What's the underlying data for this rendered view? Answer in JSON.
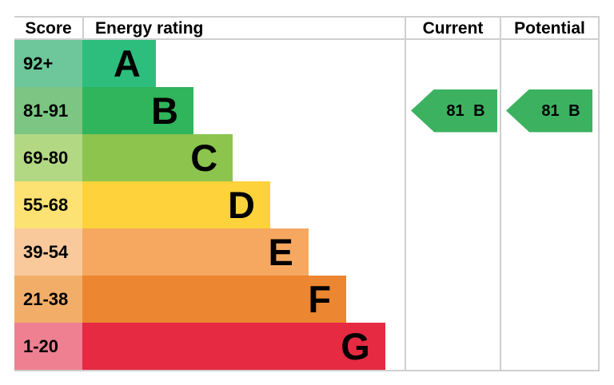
{
  "header": {
    "score": "Score",
    "energy_rating": "Energy rating",
    "current": "Current",
    "potential": "Potential"
  },
  "bands": [
    {
      "score": "92+",
      "letter": "A",
      "bar_color": "#2dbe7d",
      "score_color": "#6ec79b",
      "width_pct": 22.8
    },
    {
      "score": "81-91",
      "letter": "B",
      "bar_color": "#30b45c",
      "score_color": "#7cc583",
      "width_pct": 34.5
    },
    {
      "score": "69-80",
      "letter": "C",
      "bar_color": "#8cc44e",
      "score_color": "#b2d884",
      "width_pct": 46.7
    },
    {
      "score": "55-68",
      "letter": "D",
      "bar_color": "#fdd23b",
      "score_color": "#fbe273",
      "width_pct": 58.3
    },
    {
      "score": "39-54",
      "letter": "E",
      "bar_color": "#f6a861",
      "score_color": "#f9c99c",
      "width_pct": 70.2
    },
    {
      "score": "21-38",
      "letter": "F",
      "bar_color": "#ec8630",
      "score_color": "#f2ae69",
      "width_pct": 81.9
    },
    {
      "score": "1-20",
      "letter": "G",
      "bar_color": "#e52a42",
      "score_color": "#ee8092",
      "width_pct": 94.0
    }
  ],
  "current": {
    "label": "81 B",
    "score": 81,
    "rating": "B",
    "color": "#3cb261"
  },
  "potential": {
    "label": "81 B",
    "score": 81,
    "rating": "B",
    "color": "#3cb261"
  },
  "style": {
    "border_color": "#cfcfcf",
    "text_color": "#000000"
  },
  "chart_data": {
    "type": "bar",
    "orientation": "horizontal",
    "title": "",
    "columns": [
      "Score",
      "Energy rating",
      "Current",
      "Potential"
    ],
    "categories": [
      "A",
      "B",
      "C",
      "D",
      "E",
      "F",
      "G"
    ],
    "score_ranges": [
      "92+",
      "81-91",
      "69-80",
      "55-68",
      "39-54",
      "21-38",
      "1-20"
    ],
    "bar_length_pct": [
      22.8,
      34.5,
      46.7,
      58.3,
      70.2,
      81.9,
      94.0
    ],
    "bar_colors": [
      "#2dbe7d",
      "#30b45c",
      "#8cc44e",
      "#fdd23b",
      "#f6a861",
      "#ec8630",
      "#e52a42"
    ],
    "score_cell_colors": [
      "#6ec79b",
      "#7cc583",
      "#b2d884",
      "#fbe273",
      "#f9c99c",
      "#f2ae69",
      "#ee8092"
    ],
    "current": {
      "score": 81,
      "rating": "B"
    },
    "potential": {
      "score": 81,
      "rating": "B"
    },
    "legend": "none",
    "grid": "off"
  }
}
